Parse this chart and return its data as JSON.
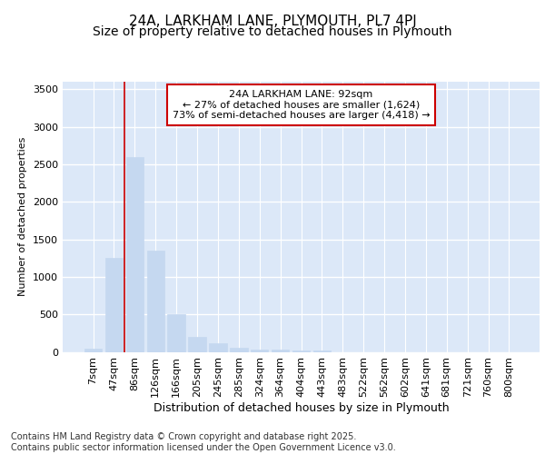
{
  "title1": "24A, LARKHAM LANE, PLYMOUTH, PL7 4PJ",
  "title2": "Size of property relative to detached houses in Plymouth",
  "xlabel": "Distribution of detached houses by size in Plymouth",
  "ylabel": "Number of detached properties",
  "categories": [
    "7sqm",
    "47sqm",
    "86sqm",
    "126sqm",
    "166sqm",
    "205sqm",
    "245sqm",
    "285sqm",
    "324sqm",
    "364sqm",
    "404sqm",
    "443sqm",
    "483sqm",
    "522sqm",
    "562sqm",
    "602sqm",
    "641sqm",
    "681sqm",
    "721sqm",
    "760sqm",
    "800sqm"
  ],
  "values": [
    45,
    1250,
    2600,
    1350,
    500,
    200,
    110,
    55,
    35,
    25,
    20,
    15,
    0,
    0,
    0,
    0,
    0,
    0,
    0,
    0,
    0
  ],
  "bar_color": "#c5d8f0",
  "bar_edge_color": "#c5d8f0",
  "vline_color": "#cc0000",
  "annotation_box_text": "24A LARKHAM LANE: 92sqm\n← 27% of detached houses are smaller (1,624)\n73% of semi-detached houses are larger (4,418) →",
  "annotation_box_color": "#cc0000",
  "ylim": [
    0,
    3600
  ],
  "yticks": [
    0,
    500,
    1000,
    1500,
    2000,
    2500,
    3000,
    3500
  ],
  "bg_color": "#dce8f8",
  "grid_color": "#ffffff",
  "footer_text": "Contains HM Land Registry data © Crown copyright and database right 2025.\nContains public sector information licensed under the Open Government Licence v3.0.",
  "title1_fontsize": 11,
  "title2_fontsize": 10,
  "ylabel_fontsize": 8,
  "xlabel_fontsize": 9,
  "tick_fontsize": 8,
  "ann_fontsize": 8,
  "footer_fontsize": 7,
  "vline_xindex": 2
}
